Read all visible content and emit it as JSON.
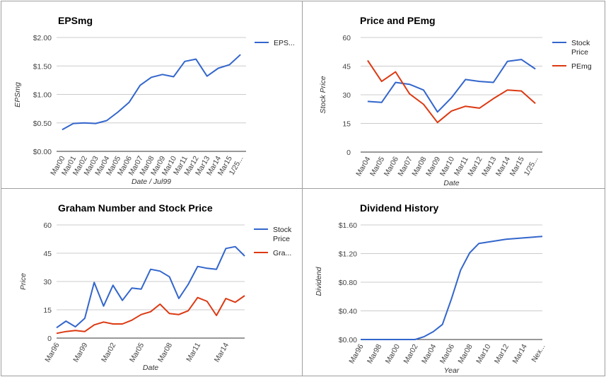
{
  "colors": {
    "blue": "#3366cc",
    "red": "#dc3912",
    "grid": "#cccccc",
    "axis": "#333333"
  },
  "chart_data": [
    {
      "id": "p1",
      "type": "line",
      "title": "EPSmg",
      "xlabel": "Date / Jul99",
      "ylabel": "EPSmg",
      "categories": [
        "Mar00",
        "Mar01",
        "Mar02",
        "Mar03",
        "Mar04",
        "Mar05",
        "Mar06",
        "Mar07",
        "Mar08",
        "Mar09",
        "Mar10",
        "Mar11",
        "Mar12",
        "Mar13",
        "Mar14",
        "Mar15",
        "1/25..."
      ],
      "x": [
        0,
        1,
        2,
        3,
        4,
        5,
        6,
        7,
        8,
        9,
        10,
        11,
        12,
        13,
        14,
        15,
        16
      ],
      "ylim": [
        0,
        2
      ],
      "yticks": [
        0,
        0.5,
        1,
        1.5,
        2
      ],
      "ytick_labels": [
        "$0.00",
        "$0.50",
        "$1.00",
        "$1.50",
        "$2.00"
      ],
      "grid": true,
      "legend_position": "right",
      "series": [
        {
          "name": "EPS...",
          "color": "#3366cc",
          "x": [
            0,
            1,
            2,
            3,
            4,
            5,
            6,
            7,
            8,
            9,
            10,
            11,
            12,
            13,
            14,
            15,
            16
          ],
          "values": [
            0.38,
            0.49,
            0.5,
            0.49,
            0.54,
            0.69,
            0.86,
            1.16,
            1.3,
            1.35,
            1.31,
            1.58,
            1.62,
            1.32,
            1.46,
            1.52,
            1.7
          ]
        }
      ]
    },
    {
      "id": "p2",
      "type": "line",
      "title": "Price and PEmg",
      "xlabel": "Date",
      "ylabel": "Stock Price",
      "categories": [
        "Mar04",
        "Mar05",
        "Mar06",
        "Mar07",
        "Mar08",
        "Mar09",
        "Mar10",
        "Mar11",
        "Mar12",
        "Mar13",
        "Mar14",
        "Mar15",
        "1/25..."
      ],
      "x": [
        0,
        1,
        2,
        3,
        4,
        5,
        6,
        7,
        8,
        9,
        10,
        11,
        12
      ],
      "ylim": [
        0,
        60
      ],
      "yticks": [
        0,
        15,
        30,
        45,
        60
      ],
      "ytick_labels": [
        "0",
        "15",
        "30",
        "45",
        "60"
      ],
      "grid": true,
      "legend_position": "right",
      "series": [
        {
          "name": [
            "Stock",
            "Price"
          ],
          "color": "#3366cc",
          "x": [
            0,
            1,
            2,
            3,
            4,
            5,
            6,
            7,
            8,
            9,
            10,
            11,
            12
          ],
          "values": [
            26.5,
            26,
            36.5,
            35.5,
            32.5,
            21,
            28.5,
            38,
            37,
            36.5,
            47.5,
            48.5,
            43.5
          ]
        },
        {
          "name": [
            "PEmg"
          ],
          "color": "#dc3912",
          "x": [
            0,
            1,
            2,
            3,
            4,
            5,
            6,
            7,
            8,
            9,
            10,
            11,
            12
          ],
          "values": [
            48,
            37,
            42,
            30.5,
            25,
            15.5,
            21.5,
            24,
            23,
            28,
            32.5,
            32,
            25.5
          ]
        }
      ]
    },
    {
      "id": "p3",
      "type": "line",
      "title": "Graham Number and Stock Price",
      "xlabel": "Date",
      "ylabel": "Price",
      "categories": [
        "Mar96",
        "Mar99",
        "Mar02",
        "Mar05",
        "Mar08",
        "Mar11",
        "Mar14"
      ],
      "category_positions": [
        0,
        3,
        6,
        9,
        12,
        15,
        18
      ],
      "xlim": [
        0,
        20
      ],
      "ylim": [
        0,
        60
      ],
      "yticks": [
        0,
        15,
        30,
        45,
        60
      ],
      "ytick_labels": [
        "0",
        "15",
        "30",
        "45",
        "60"
      ],
      "grid": true,
      "legend_position": "right",
      "series": [
        {
          "name": [
            "Stock",
            "Price"
          ],
          "color": "#3366cc",
          "x": [
            0,
            1,
            2,
            3,
            4,
            5,
            6,
            7,
            8,
            9,
            10,
            11,
            12,
            13,
            14,
            15,
            16,
            17,
            18,
            19,
            20
          ],
          "values": [
            5.5,
            9,
            6,
            10.5,
            29.5,
            17,
            28,
            20,
            26.5,
            26,
            36.5,
            35.5,
            32.5,
            21,
            28.5,
            38,
            37,
            36.5,
            47.5,
            48.5,
            43.5
          ]
        },
        {
          "name": [
            "Gra..."
          ],
          "color": "#dc3912",
          "x": [
            0,
            1,
            2,
            3,
            4,
            5,
            6,
            7,
            8,
            9,
            10,
            11,
            12,
            13,
            14,
            15,
            16,
            17,
            18,
            19,
            20
          ],
          "values": [
            2.5,
            3.5,
            4,
            3.5,
            7,
            8.5,
            7.5,
            7.5,
            9.5,
            12.5,
            14,
            18,
            13,
            12.5,
            14.5,
            21.5,
            19.5,
            12,
            21,
            19,
            22.5
          ]
        }
      ]
    },
    {
      "id": "p4",
      "type": "line",
      "title": "Dividend History",
      "xlabel": "Year",
      "ylabel": "Dividend",
      "categories": [
        "Mar96",
        "Mar98",
        "Mar00",
        "Mar02",
        "Mar04",
        "Mar06",
        "Mar08",
        "Mar10",
        "Mar12",
        "Mar14",
        "Nex..."
      ],
      "category_positions": [
        0,
        2,
        4,
        6,
        8,
        10,
        12,
        14,
        16,
        18,
        20
      ],
      "xlim": [
        0,
        20
      ],
      "ylim": [
        0,
        1.6
      ],
      "yticks": [
        0,
        0.4,
        0.8,
        1.2,
        1.6
      ],
      "ytick_labels": [
        "$0.00",
        "$0.40",
        "$0.80",
        "$1.20",
        "$1.60"
      ],
      "grid": true,
      "legend_position": "none",
      "series": [
        {
          "name": "",
          "color": "#3366cc",
          "x": [
            0,
            1,
            2,
            3,
            4,
            5,
            6,
            7,
            8,
            9,
            10,
            11,
            12,
            13,
            14,
            15,
            16,
            17,
            18,
            19,
            20
          ],
          "values": [
            0,
            0,
            0,
            0,
            0,
            0,
            0,
            0.04,
            0.11,
            0.21,
            0.57,
            0.97,
            1.21,
            1.34,
            1.36,
            1.38,
            1.4,
            1.41,
            1.42,
            1.43,
            1.44
          ]
        }
      ]
    }
  ]
}
